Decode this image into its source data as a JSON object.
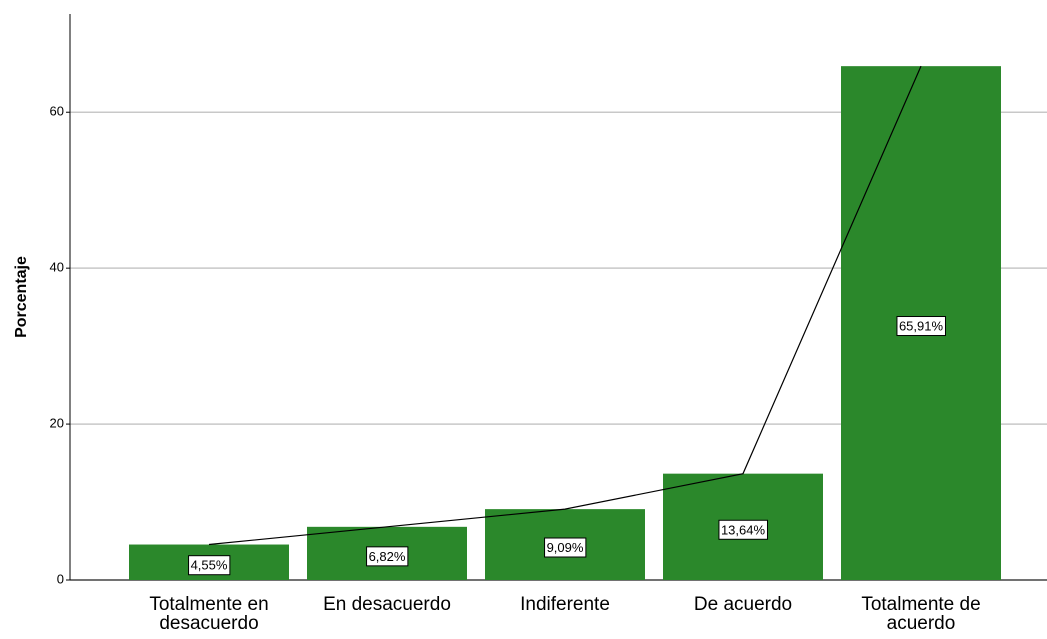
{
  "chart_data": {
    "type": "bar",
    "y_label": "Porcentaje",
    "categories": [
      "Totalmente en desacuerdo",
      "En desacuerdo",
      "Indiferente",
      "De acuerdo",
      "Totalmente de acuerdo"
    ],
    "values": [
      4.55,
      6.82,
      9.09,
      13.64,
      65.91
    ],
    "value_labels": [
      "4,55%",
      "6,82%",
      "9,09%",
      "13,64%",
      "65,91%"
    ],
    "color": "#2b882b",
    "line_color": "#000000",
    "ylim": [
      0,
      72.6
    ],
    "yticks": [
      0,
      20,
      40,
      60
    ],
    "grid": true
  }
}
